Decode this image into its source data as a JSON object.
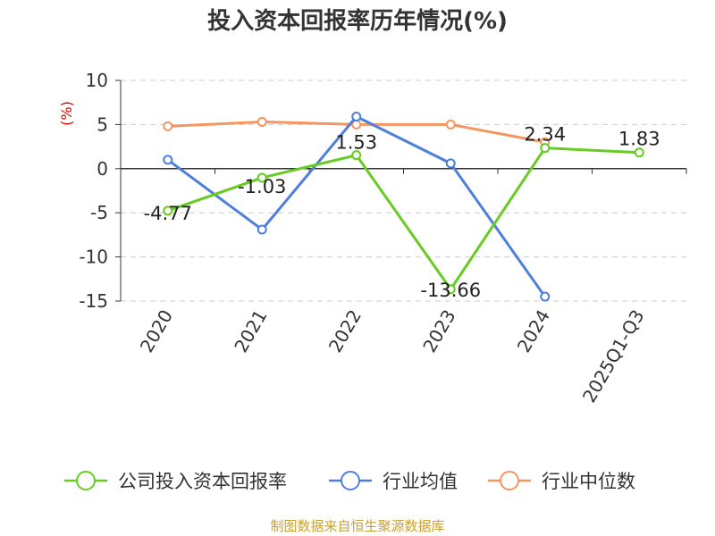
{
  "chart_data": {
    "type": "line",
    "title": "投入资本回报率历年情况(%)",
    "unit_label": "(%)",
    "categories": [
      "2020",
      "2021",
      "2022",
      "2023",
      "2024",
      "2025Q1-Q3"
    ],
    "ylim": [
      -15,
      10
    ],
    "yticks": [
      10,
      5,
      0,
      -5,
      -10,
      -15
    ],
    "grid": true,
    "legend_position": "bottom",
    "series": [
      {
        "name": "公司投入资本回报率",
        "color": "#66cc22",
        "values": [
          -4.77,
          -1.03,
          1.53,
          -13.66,
          2.34,
          1.83
        ],
        "labels": [
          "-4.77",
          "-1.03",
          "1.53",
          "-13.66",
          "2.34",
          "1.83"
        ]
      },
      {
        "name": "行业均值",
        "color": "#4d7fdb",
        "values": [
          1.0,
          -6.9,
          5.9,
          0.6,
          -14.5,
          null
        ]
      },
      {
        "name": "行业中位数",
        "color": "#f39660",
        "values": [
          4.8,
          5.3,
          5.0,
          5.0,
          3.0,
          null
        ]
      }
    ]
  },
  "footer": {
    "source": "制图数据来自恒生聚源数据库"
  }
}
